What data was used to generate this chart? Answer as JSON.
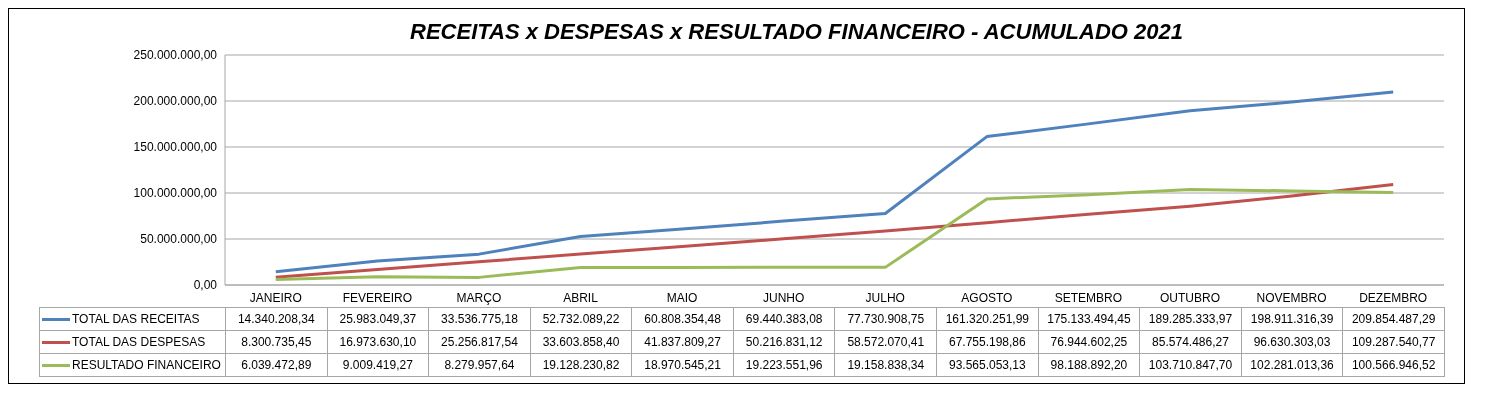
{
  "chart_data": {
    "type": "line",
    "title": "RECEITAS x DESPESAS x RESULTADO FINANCEIRO  -  ACUMULADO 2021",
    "categories": [
      "JANEIRO",
      "FEVEREIRO",
      "MARÇO",
      "ABRIL",
      "MAIO",
      "JUNHO",
      "JULHO",
      "AGOSTO",
      "SETEMBRO",
      "OUTUBRO",
      "NOVEMBRO",
      "DEZEMBRO"
    ],
    "series": [
      {
        "name": "TOTAL DAS RECEITAS",
        "color": "#4f81bd",
        "values": [
          14340208.34,
          25983049.37,
          33536775.18,
          52732089.22,
          60808354.48,
          69440383.08,
          77730908.75,
          161320251.99,
          175133494.45,
          189285333.97,
          198911316.39,
          209854487.29
        ],
        "value_labels": [
          "14.340.208,34",
          "25.983.049,37",
          "33.536.775,18",
          "52.732.089,22",
          "60.808.354,48",
          "69.440.383,08",
          "77.730.908,75",
          "161.320.251,99",
          "175.133.494,45",
          "189.285.333,97",
          "198.911.316,39",
          "209.854.487,29"
        ]
      },
      {
        "name": "TOTAL DAS DESPESAS",
        "color": "#c0504d",
        "values": [
          8300735.45,
          16973630.1,
          25256817.54,
          33603858.4,
          41837809.27,
          50216831.12,
          58572070.41,
          67755198.86,
          76944602.25,
          85574486.27,
          96630303.03,
          109287540.77
        ],
        "value_labels": [
          "8.300.735,45",
          "16.973.630,10",
          "25.256.817,54",
          "33.603.858,40",
          "41.837.809,27",
          "50.216.831,12",
          "58.572.070,41",
          "67.755.198,86",
          "76.944.602,25",
          "85.574.486,27",
          "96.630.303,03",
          "109.287.540,77"
        ]
      },
      {
        "name": "RESULTADO FINANCEIRO",
        "color": "#9bbb59",
        "values": [
          6039472.89,
          9009419.27,
          8279957.64,
          19128230.82,
          18970545.21,
          19223551.96,
          19158838.34,
          93565053.13,
          98188892.2,
          103710847.7,
          102281013.36,
          100566946.52
        ],
        "value_labels": [
          "6.039.472,89",
          "9.009.419,27",
          "8.279.957,64",
          "19.128.230,82",
          "18.970.545,21",
          "19.223.551,96",
          "19.158.838,34",
          "93.565.053,13",
          "98.188.892,20",
          "103.710.847,70",
          "102.281.013,36",
          "100.566.946,52"
        ]
      }
    ],
    "ylim": [
      0,
      250000000
    ],
    "yticks": [
      {
        "value": 0,
        "label": "0,00"
      },
      {
        "value": 50000000,
        "label": "50.000.000,00"
      },
      {
        "value": 100000000,
        "label": "100.000.000,00"
      },
      {
        "value": 150000000,
        "label": "150.000.000,00"
      },
      {
        "value": 200000000,
        "label": "200.000.000,00"
      },
      {
        "value": 250000000,
        "label": "250.000.000,00"
      }
    ],
    "grid": "y",
    "legend": "bottom",
    "marker": "none"
  }
}
